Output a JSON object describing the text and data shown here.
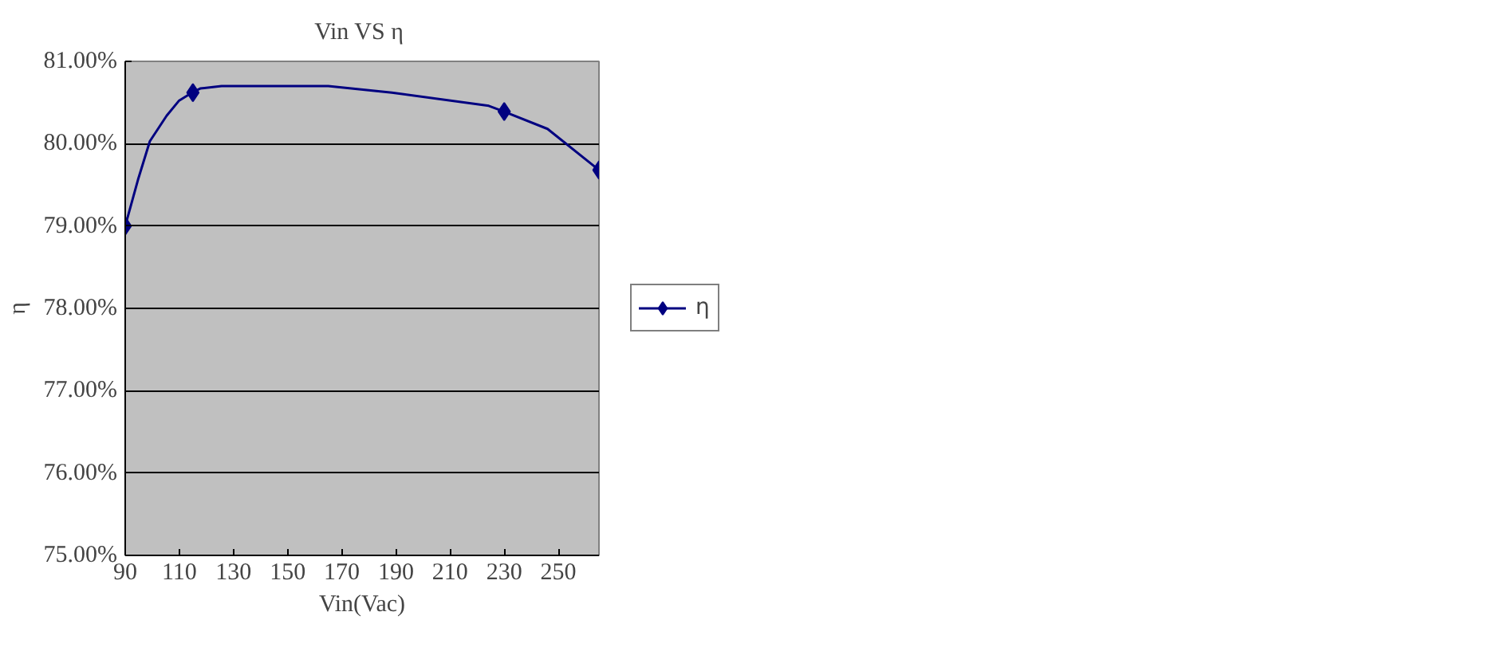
{
  "chart_data": {
    "type": "line",
    "title": "Vin VS  η",
    "xlabel": "Vin(Vac)",
    "ylabel": "η",
    "xlim": [
      90,
      265
    ],
    "xticks": [
      90,
      110,
      130,
      150,
      170,
      190,
      210,
      230,
      250
    ],
    "ylim": [
      75,
      81
    ],
    "yticks": [
      {
        "value": 75,
        "label": "75.00%"
      },
      {
        "value": 76,
        "label": "76.00%"
      },
      {
        "value": 77,
        "label": "77.00%"
      },
      {
        "value": 78,
        "label": "78.00%"
      },
      {
        "value": 79,
        "label": "79.00%"
      },
      {
        "value": 80,
        "label": "80.00%"
      },
      {
        "value": 81,
        "label": "81.00%"
      }
    ],
    "grid": "y",
    "legend": "right",
    "line_style": "solid",
    "series": [
      {
        "name": "η",
        "marker": "none",
        "color": "#000080",
        "x": [
          90,
          94.7,
          99.1,
          105.3,
          109.8,
          114.7,
          117.7,
          125.6,
          165,
          188.5,
          224.3,
          230,
          246,
          265
        ],
        "values": [
          79.0,
          79.56,
          80.03,
          80.34,
          80.52,
          80.62,
          80.67,
          80.7,
          80.7,
          80.62,
          80.46,
          80.39,
          80.18,
          79.68
        ]
      },
      {
        "type": "scatter",
        "marker": "diamond",
        "color": "#000080",
        "x": [
          90,
          115,
          230,
          265
        ],
        "values": [
          79.0,
          80.62,
          80.39,
          79.68
        ]
      }
    ]
  }
}
